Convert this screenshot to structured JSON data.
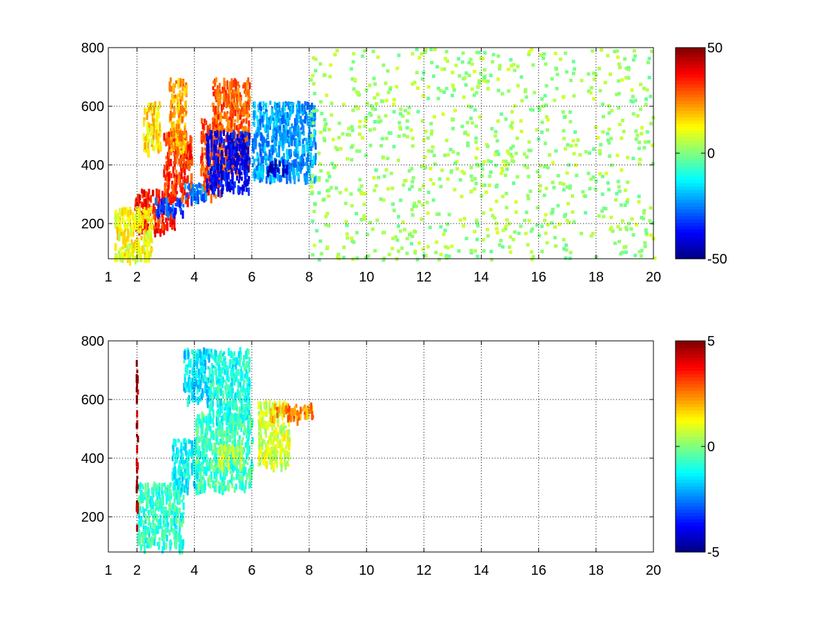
{
  "chart_data": [
    {
      "type": "heatmap",
      "title": "",
      "xlabel": "",
      "ylabel": "",
      "xlim": [
        1,
        20
      ],
      "ylim": [
        80,
        800
      ],
      "xticks": [
        1,
        2,
        4,
        6,
        8,
        10,
        12,
        14,
        16,
        18,
        20
      ],
      "yticks": [
        200,
        400,
        600,
        800
      ],
      "grid": true,
      "colormap": "jet",
      "colorbar": {
        "min": -50,
        "max": 50,
        "ticks": [
          -50,
          0,
          50
        ]
      },
      "regions": [
        {
          "x": [
            1.9,
            3.3
          ],
          "y": [
            180,
            320
          ],
          "value": 35
        },
        {
          "x": [
            2.9,
            3.9
          ],
          "y": [
            280,
            520
          ],
          "value": 32
        },
        {
          "x": [
            3.1,
            3.7
          ],
          "y": [
            450,
            700
          ],
          "value": 22
        },
        {
          "x": [
            4.6,
            5.9
          ],
          "y": [
            380,
            700
          ],
          "value": 28
        },
        {
          "x": [
            4.2,
            4.9
          ],
          "y": [
            300,
            560
          ],
          "value": 30
        },
        {
          "x": [
            2.6,
            3.6
          ],
          "y": [
            240,
            290
          ],
          "value": -30
        },
        {
          "x": [
            3.6,
            4.4
          ],
          "y": [
            290,
            340
          ],
          "value": -25
        },
        {
          "x": [
            4.4,
            5.9
          ],
          "y": [
            320,
            520
          ],
          "value": -38
        },
        {
          "x": [
            6.0,
            8.2
          ],
          "y": [
            360,
            620
          ],
          "value": -22
        },
        {
          "x": [
            6.5,
            7.2
          ],
          "y": [
            380,
            420
          ],
          "value": -40
        },
        {
          "x": [
            1.2,
            2.5
          ],
          "y": [
            85,
            260
          ],
          "value": 12
        },
        {
          "x": [
            2.2,
            2.8
          ],
          "y": [
            450,
            620
          ],
          "value": 15
        },
        {
          "x": [
            8,
            20
          ],
          "y": [
            80,
            800
          ],
          "value": 3
        }
      ]
    },
    {
      "type": "heatmap",
      "title": "",
      "xlabel": "",
      "ylabel": "",
      "xlim": [
        1,
        20
      ],
      "ylim": [
        80,
        800
      ],
      "xticks": [
        1,
        2,
        4,
        6,
        8,
        10,
        12,
        14,
        16,
        18,
        20
      ],
      "yticks": [
        200,
        400,
        600,
        800
      ],
      "grid": true,
      "colormap": "jet",
      "colorbar": {
        "min": -5,
        "max": 5,
        "ticks": [
          -5,
          0,
          5
        ]
      },
      "regions": [
        {
          "x": [
            2.0,
            3.6
          ],
          "y": [
            100,
            320
          ],
          "value": -0.8
        },
        {
          "x": [
            3.2,
            4.2
          ],
          "y": [
            300,
            470
          ],
          "value": -1.2
        },
        {
          "x": [
            3.6,
            4.5
          ],
          "y": [
            600,
            780
          ],
          "value": -1.5
        },
        {
          "x": [
            4.0,
            6.0
          ],
          "y": [
            300,
            560
          ],
          "value": -0.6
        },
        {
          "x": [
            4.5,
            5.9
          ],
          "y": [
            540,
            780
          ],
          "value": -1.0
        },
        {
          "x": [
            4.8,
            5.6
          ],
          "y": [
            380,
            450
          ],
          "value": 0.6
        },
        {
          "x": [
            6.2,
            7.3
          ],
          "y": [
            380,
            600
          ],
          "value": 0.8
        },
        {
          "x": [
            6.6,
            8.1
          ],
          "y": [
            540,
            590
          ],
          "value": 2.4
        },
        {
          "x": [
            1.95,
            2.0
          ],
          "y": [
            150,
            750
          ],
          "value": 4.5
        }
      ]
    }
  ]
}
